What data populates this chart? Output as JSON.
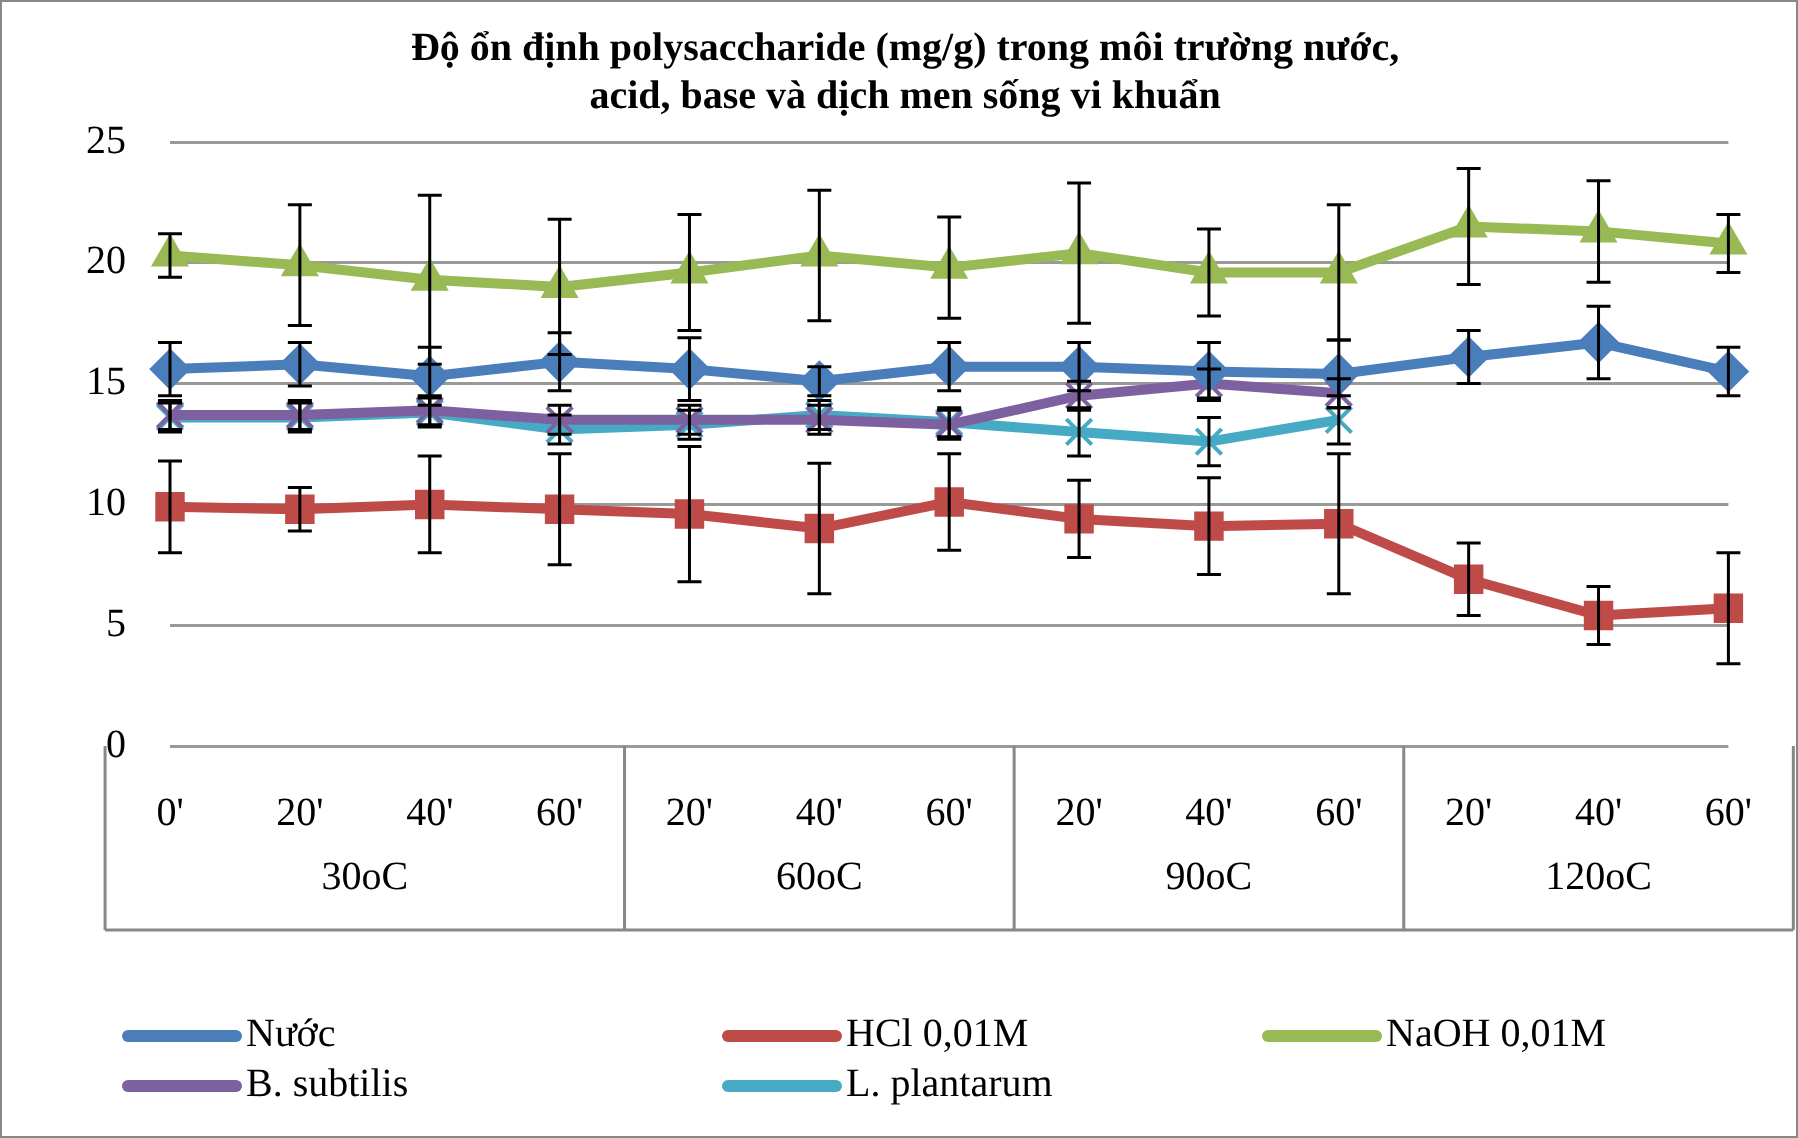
{
  "chart_data": {
    "type": "line",
    "title": "Độ ổn định polysaccharide (mg/g) trong môi trường nước,\nacid, base và dịch men sống vi khuẩn",
    "categories": [
      "0'",
      "20'",
      "40'",
      "60'",
      "20'",
      "40'",
      "60'",
      "20'",
      "40'",
      "60'",
      "20'",
      "40'",
      "60'"
    ],
    "annotations": [
      "30oC",
      "60oC",
      "90oC",
      "120oC"
    ],
    "ylim": [
      0,
      25
    ],
    "yticks": [
      0,
      5,
      10,
      15,
      20,
      25
    ],
    "grid": "y",
    "legend": "bottom",
    "series": [
      {
        "name": "Nước",
        "color": "#4a7ebb",
        "marker": "diamond",
        "values": [
          15.6,
          15.8,
          15.3,
          15.9,
          15.6,
          15.1,
          15.7,
          15.7,
          15.5,
          15.4,
          16.1,
          16.7,
          15.5
        ],
        "errors": [
          1.1,
          0.9,
          1.2,
          1.2,
          1.3,
          0.6,
          1.0,
          1.0,
          1.2,
          1.4,
          1.1,
          1.5,
          1.0
        ]
      },
      {
        "name": "HCl 0,01M",
        "color": "#be4b48",
        "marker": "square",
        "values": [
          9.9,
          9.8,
          10.0,
          9.8,
          9.6,
          9.0,
          10.1,
          9.4,
          9.1,
          9.2,
          6.9,
          5.4,
          5.7
        ],
        "errors": [
          1.9,
          0.9,
          2.0,
          2.3,
          2.8,
          2.7,
          2.0,
          1.6,
          2.0,
          2.9,
          1.5,
          1.2,
          2.3
        ]
      },
      {
        "name": "NaOH 0,01M",
        "color": "#98b954",
        "marker": "triangle",
        "values": [
          20.3,
          19.9,
          19.3,
          19.0,
          19.6,
          20.3,
          19.8,
          20.4,
          19.6,
          19.6,
          21.5,
          21.3,
          20.8
        ],
        "errors": [
          0.9,
          2.5,
          3.5,
          2.8,
          2.4,
          2.7,
          2.1,
          2.9,
          1.8,
          2.8,
          2.4,
          2.1,
          1.2
        ]
      },
      {
        "name": "B. subtilis",
        "color": "#7d60a0",
        "marker": "cross",
        "values": [
          13.7,
          13.7,
          13.9,
          13.5,
          13.5,
          13.5,
          13.3,
          14.5,
          15.0,
          14.6,
          null,
          null,
          null
        ],
        "errors": [
          0.6,
          0.6,
          0.6,
          0.6,
          0.6,
          0.6,
          0.6,
          0.6,
          0.6,
          0.6,
          null,
          null,
          null
        ]
      },
      {
        "name": "L. plantarum",
        "color": "#46aac5",
        "marker": "cross",
        "values": [
          13.6,
          13.6,
          13.8,
          13.1,
          13.3,
          13.7,
          13.4,
          13.0,
          12.6,
          13.5,
          null,
          null,
          null
        ],
        "errors": [
          0.6,
          0.6,
          0.6,
          0.6,
          0.6,
          0.6,
          0.6,
          1.0,
          1.0,
          1.0,
          null,
          null,
          null
        ]
      }
    ]
  }
}
